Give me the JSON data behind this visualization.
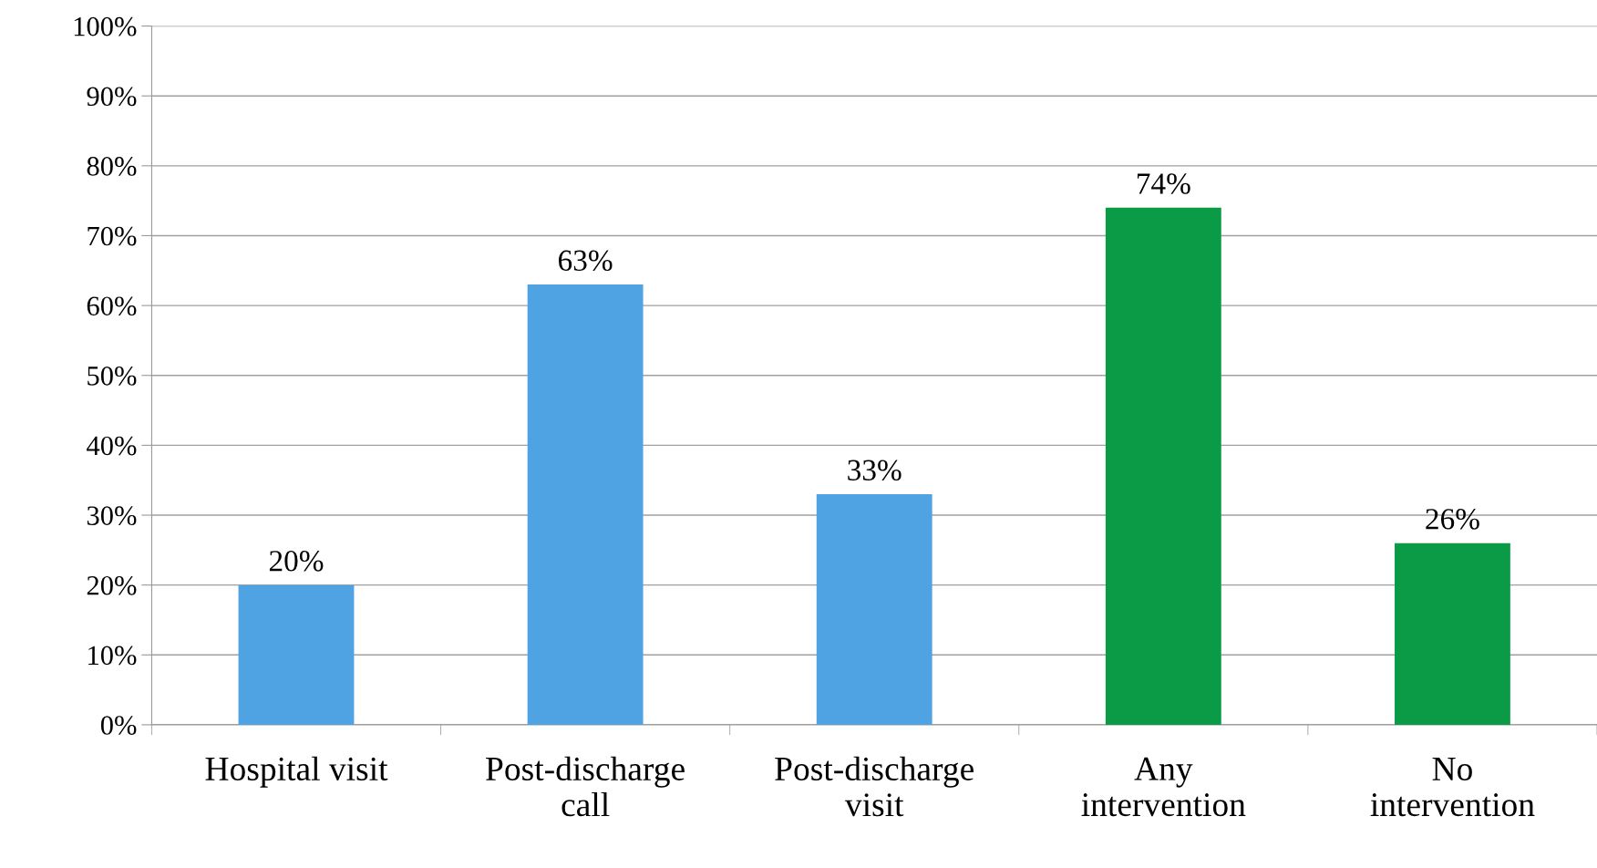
{
  "chart_data": {
    "type": "bar",
    "categories": [
      "Hospital visit",
      "Post-discharge\ncall",
      "Post-discharge\nvisit",
      "Any\nintervention",
      "No\nintervention"
    ],
    "values": [
      20,
      63,
      33,
      74,
      26
    ],
    "colors": [
      "#4fa3e3",
      "#4fa3e3",
      "#4fa3e3",
      "#0b9a45",
      "#0b9a45"
    ],
    "value_labels": [
      "20%",
      "63%",
      "33%",
      "74%",
      "26%"
    ],
    "ylim": [
      0,
      100
    ],
    "yticks": [
      {
        "value": 0,
        "label": "0%"
      },
      {
        "value": 10,
        "label": "10%"
      },
      {
        "value": 20,
        "label": "20%"
      },
      {
        "value": 30,
        "label": "30%"
      },
      {
        "value": 40,
        "label": "40%"
      },
      {
        "value": 50,
        "label": "50%"
      },
      {
        "value": 60,
        "label": "60%"
      },
      {
        "value": 70,
        "label": "70%"
      },
      {
        "value": 80,
        "label": "80%"
      },
      {
        "value": 90,
        "label": "90%"
      },
      {
        "value": 100,
        "label": "100%"
      }
    ],
    "grid": "y"
  }
}
